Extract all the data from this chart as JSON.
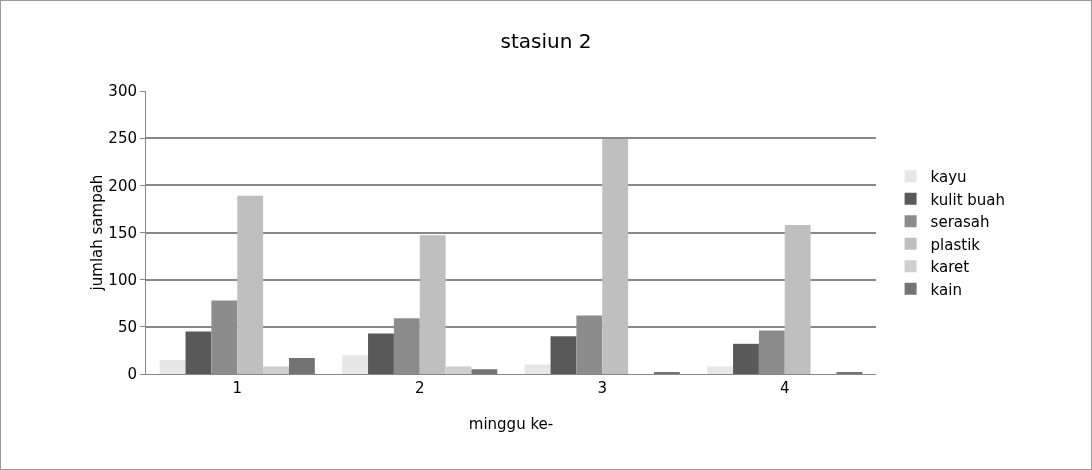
{
  "chart_data": {
    "type": "bar",
    "title": "stasiun 2",
    "xlabel": "minggu ke-",
    "ylabel": "jumlah sampah",
    "categories": [
      "1",
      "2",
      "3",
      "4"
    ],
    "series": [
      {
        "name": "kayu",
        "color": "#e6e6e6",
        "values": [
          15,
          20,
          10,
          8
        ]
      },
      {
        "name": "kulit buah",
        "color": "#595959",
        "values": [
          45,
          43,
          40,
          32
        ]
      },
      {
        "name": "serasah",
        "color": "#8c8c8c",
        "values": [
          78,
          59,
          62,
          46
        ]
      },
      {
        "name": "plastik",
        "color": "#bfbfbf",
        "values": [
          189,
          147,
          249,
          158
        ]
      },
      {
        "name": "karet",
        "color": "#d0d0d0",
        "values": [
          8,
          8,
          0,
          0
        ]
      },
      {
        "name": "kain",
        "color": "#737373",
        "values": [
          17,
          5,
          2,
          2
        ]
      }
    ],
    "ylim": [
      0,
      300
    ],
    "yticks": [
      0,
      50,
      100,
      150,
      200,
      250,
      300
    ],
    "grid": "y",
    "legend": "right"
  }
}
